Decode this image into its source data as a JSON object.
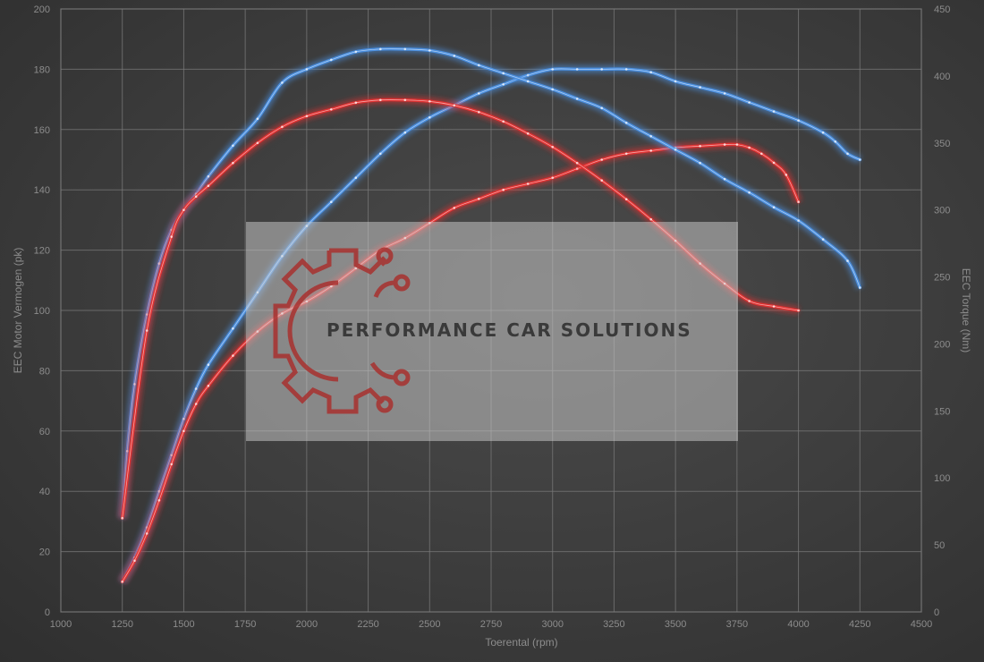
{
  "chart_data": {
    "type": "line",
    "xlabel": "Toerental (rpm)",
    "ylabel_left": "EEC Motor Vermogen (pk)",
    "ylabel_right": "EEC Torque (Nm)",
    "xlim": [
      1000,
      4500
    ],
    "ylim_left": [
      0,
      200
    ],
    "ylim_right": [
      0,
      450
    ],
    "x_ticks": [
      1000,
      1250,
      1500,
      1750,
      2000,
      2250,
      2500,
      2750,
      3000,
      3250,
      3500,
      3750,
      4000,
      4250,
      4500
    ],
    "y_ticks_left": [
      0,
      20,
      40,
      60,
      80,
      100,
      120,
      140,
      160,
      180,
      200
    ],
    "y_ticks_right": [
      0,
      50,
      100,
      150,
      200,
      250,
      300,
      350,
      400,
      450
    ],
    "grid": true,
    "legend": "none",
    "series": [
      {
        "axis": "left",
        "color": "#4a8fe0",
        "x": [
          1250,
          1300,
          1350,
          1400,
          1450,
          1500,
          1550,
          1600,
          1700,
          1800,
          1900,
          2000,
          2100,
          2200,
          2300,
          2400,
          2500,
          2600,
          2700,
          2800,
          2900,
          3000,
          3100,
          3200,
          3300,
          3400,
          3500,
          3600,
          3700,
          3800,
          3900,
          4000,
          4100,
          4150,
          4200,
          4250
        ],
        "y": [
          10,
          18,
          28,
          40,
          52,
          64,
          74,
          82,
          94,
          106,
          118,
          128,
          136,
          144,
          152,
          159,
          164,
          168,
          172,
          175,
          178,
          180,
          180,
          180,
          180,
          179,
          176,
          174,
          172,
          169,
          166,
          163,
          159,
          156,
          152,
          150
        ]
      },
      {
        "axis": "left",
        "color": "#e23232",
        "x": [
          1250,
          1300,
          1350,
          1400,
          1450,
          1500,
          1550,
          1600,
          1700,
          1800,
          1900,
          2000,
          2100,
          2200,
          2300,
          2400,
          2500,
          2600,
          2700,
          2800,
          2900,
          3000,
          3100,
          3200,
          3300,
          3400,
          3500,
          3600,
          3700,
          3750,
          3800,
          3850,
          3900,
          3950,
          4000
        ],
        "y": [
          10,
          17,
          26,
          37,
          49,
          60,
          69,
          75,
          85,
          93,
          99,
          103,
          108,
          114,
          120,
          124,
          129,
          134,
          137,
          140,
          142,
          144,
          147,
          150,
          152,
          153,
          154,
          154.5,
          155,
          155,
          154,
          152,
          149,
          145,
          136
        ]
      },
      {
        "axis": "right",
        "color": "#4a8fe0",
        "x": [
          1250,
          1270,
          1300,
          1350,
          1400,
          1450,
          1500,
          1550,
          1600,
          1700,
          1800,
          1900,
          2000,
          2100,
          2200,
          2300,
          2400,
          2500,
          2600,
          2700,
          2800,
          2900,
          3000,
          3100,
          3200,
          3300,
          3400,
          3500,
          3600,
          3700,
          3800,
          3900,
          4000,
          4100,
          4200,
          4250
        ],
        "y": [
          70,
          120,
          170,
          222,
          260,
          285,
          300,
          312,
          325,
          348,
          368,
          395,
          405,
          412,
          418,
          420,
          420,
          419,
          415,
          408,
          402,
          396,
          390,
          383,
          376,
          365,
          355,
          345,
          335,
          323,
          313,
          302,
          292,
          278,
          262,
          242
        ]
      },
      {
        "axis": "right",
        "color": "#e23232",
        "x": [
          1250,
          1350,
          1450,
          1500,
          1550,
          1600,
          1700,
          1800,
          1900,
          2000,
          2100,
          2200,
          2300,
          2400,
          2500,
          2600,
          2700,
          2800,
          2900,
          3000,
          3100,
          3200,
          3300,
          3400,
          3500,
          3600,
          3700,
          3800,
          3900,
          4000
        ],
        "y": [
          70,
          210,
          280,
          300,
          310,
          318,
          335,
          350,
          362,
          370,
          375,
          380,
          382,
          382,
          381,
          378,
          373,
          366,
          357,
          347,
          335,
          322,
          308,
          293,
          277,
          260,
          245,
          232,
          228,
          225
        ]
      }
    ]
  },
  "watermark": {
    "text": "PERFORMANCE CAR SOLUTIONS"
  }
}
